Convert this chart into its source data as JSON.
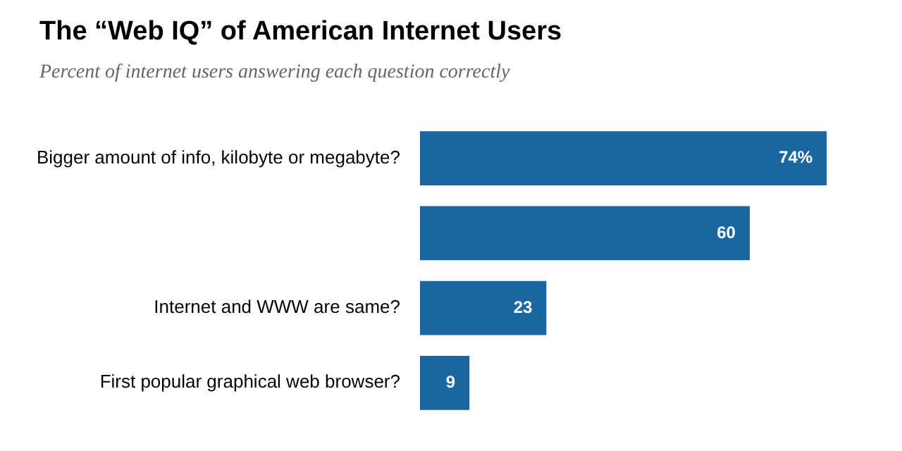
{
  "chart_data": {
    "type": "bar",
    "orientation": "horizontal",
    "title": "The “Web IQ” of American Internet Users",
    "subtitle": "Percent of internet users answering each question correctly",
    "categories": [
      "Bigger amount of info, kilobyte or megabyte?",
      null,
      "Internet and WWW are same?",
      "First popular graphical web browser?"
    ],
    "values": [
      74,
      60,
      23,
      9
    ],
    "value_labels": [
      "74%",
      "60",
      "23",
      "9"
    ],
    "color": "#1a66a0",
    "tick_labels": "y",
    "legend": false
  }
}
